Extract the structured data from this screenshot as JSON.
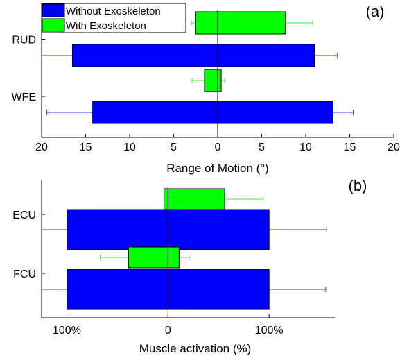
{
  "chart_data": [
    {
      "type": "bar",
      "orientation": "horizontal",
      "panel_label": "(a)",
      "title": "",
      "xlabel": "Range of Motion (°)",
      "ylabel": "",
      "categories": [
        "RUD",
        "WFE"
      ],
      "x_tick_labels": [
        "20",
        "15",
        "10",
        "5",
        "0",
        "5",
        "10",
        "15",
        "20"
      ],
      "xlim": [
        -20,
        20
      ],
      "grid": false,
      "legend_position": "top-left",
      "series": [
        {
          "name": "Without Exoskeleton",
          "color": "#0000ff",
          "values": [
            [
              -16.5,
              11.0
            ],
            [
              -14.2,
              13.1
            ]
          ],
          "error_bars": [
            [
              -20.2,
              13.6
            ],
            [
              -19.4,
              15.4
            ]
          ]
        },
        {
          "name": "With Exoskeleton",
          "color": "#00ff00",
          "values": [
            [
              -2.5,
              7.7
            ],
            [
              -1.5,
              0.4
            ]
          ],
          "error_bars": [
            [
              -3.0,
              10.8
            ],
            [
              -2.9,
              0.8
            ]
          ]
        }
      ]
    },
    {
      "type": "bar",
      "orientation": "horizontal",
      "panel_label": "(b)",
      "title": "",
      "xlabel": "Muscle activation (%)",
      "ylabel": "",
      "categories": [
        "ECU",
        "FCU"
      ],
      "x_tick_labels": [
        "100%",
        "0",
        "100%"
      ],
      "x_tick_values": [
        -100,
        0,
        100
      ],
      "xlim": [
        -125,
        165
      ],
      "grid": false,
      "series": [
        {
          "name": "Without Exoskeleton",
          "color": "#0000ff",
          "values": [
            [
              -100,
              100
            ],
            [
              -100,
              100
            ]
          ],
          "error_bars": [
            [
              -225,
              157
            ],
            [
              -162,
              156
            ]
          ]
        },
        {
          "name": "With Exoskeleton",
          "color": "#00ff00",
          "values": [
            [
              -4,
              56
            ],
            [
              -39,
              11
            ]
          ],
          "error_bars": [
            [
              -4,
              94
            ],
            [
              -67,
              21
            ]
          ]
        }
      ]
    }
  ]
}
